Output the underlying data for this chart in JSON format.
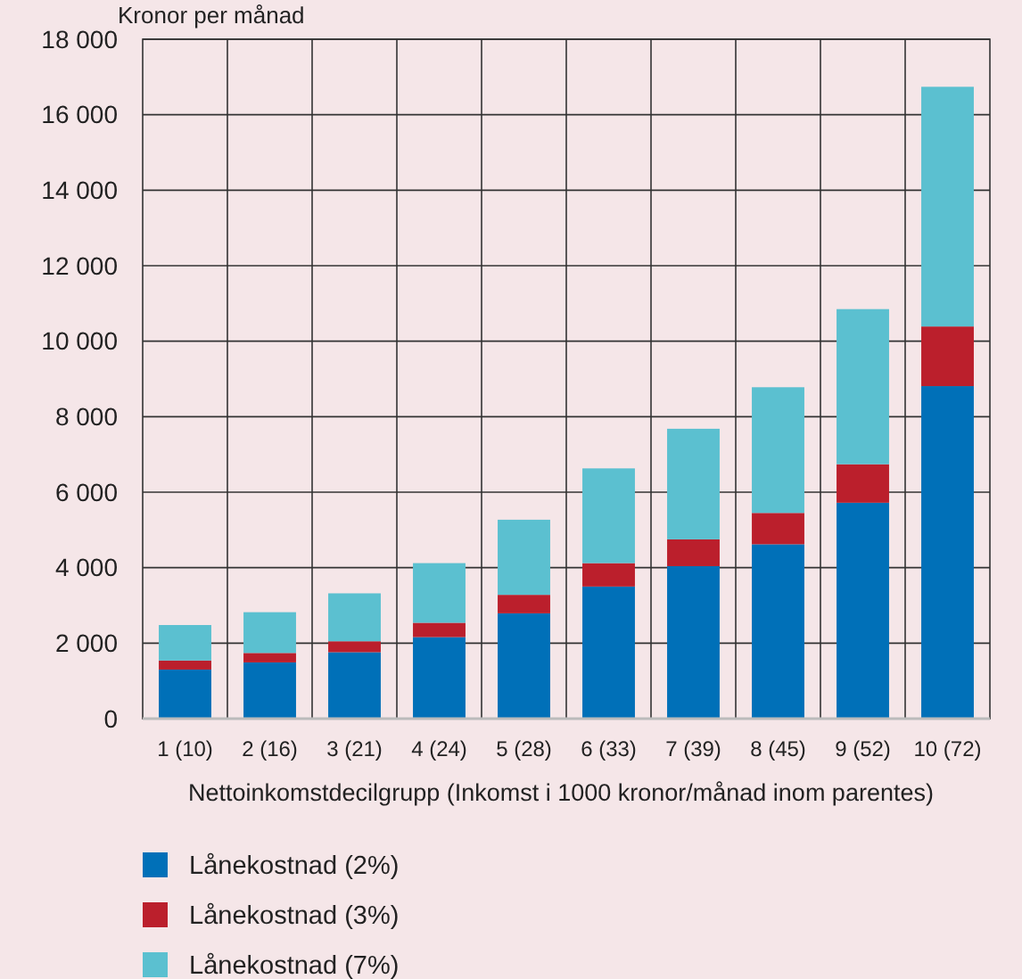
{
  "chart_data": {
    "type": "bar",
    "stacked": true,
    "ylabel": "Kronor per månad",
    "xlabel": "Nettoinkomstdecilgrupp (Inkomst i 1000 kronor/månad inom parentes)",
    "categories": [
      "1 (10)",
      "2 (16)",
      "3 (21)",
      "4 (24)",
      "5 (28)",
      "6 (33)",
      "7 (39)",
      "8 (45)",
      "9 (52)",
      "10 (72)"
    ],
    "series": [
      {
        "name": "Lånekostnad (2%)",
        "color": "#0070b8",
        "values": [
          1300,
          1490,
          1760,
          2160,
          2790,
          3500,
          4040,
          4620,
          5720,
          8810
        ]
      },
      {
        "name": "Lånekostnad (3%)",
        "color": "#bb1f2c",
        "values": [
          240,
          250,
          290,
          380,
          490,
          620,
          710,
          830,
          1020,
          1580
        ]
      },
      {
        "name": "Lånekostnad (7%)",
        "color": "#5bc0d0",
        "values": [
          940,
          1080,
          1270,
          1580,
          1990,
          2510,
          2930,
          3330,
          4110,
          6350
        ]
      }
    ],
    "ylim": [
      0,
      18000
    ],
    "yticks": [
      0,
      {
        "value": 2000,
        "label": "2 000"
      },
      {
        "value": 4000,
        "label": "4 000"
      },
      {
        "value": 6000,
        "label": "6 000"
      },
      {
        "value": 8000,
        "label": "8 000"
      },
      {
        "value": 10000,
        "label": "10 000"
      },
      {
        "value": 12000,
        "label": "12 000"
      },
      {
        "value": 14000,
        "label": "14 000"
      },
      {
        "value": 16000,
        "label": "16 000"
      },
      {
        "value": 18000,
        "label": "18 000"
      }
    ],
    "grid": true,
    "legend": "bottom"
  }
}
